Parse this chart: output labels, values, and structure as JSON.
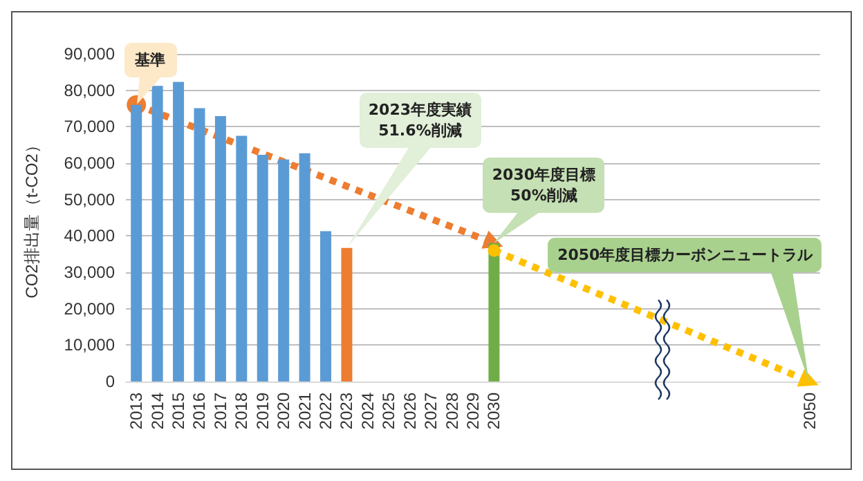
{
  "chart_data": {
    "type": "bar",
    "ylabel": "CO2排出量（t-CO2）",
    "categories": [
      "2013",
      "2014",
      "2015",
      "2016",
      "2017",
      "2018",
      "2019",
      "2020",
      "2021",
      "2022",
      "2023",
      "2024",
      "2025",
      "2026",
      "2027",
      "2028",
      "2029",
      "2030",
      null,
      null,
      null,
      null,
      null,
      null,
      null,
      null,
      null,
      null,
      null,
      null,
      null,
      null,
      "2050"
    ],
    "series": [
      {
        "values": [
          76000,
          81200,
          82300,
          75100,
          72900,
          67500,
          62300,
          61000,
          62700,
          41300,
          36700,
          null,
          null,
          null,
          null,
          null,
          null,
          38000,
          null,
          null,
          null,
          null,
          null,
          null,
          null,
          null,
          null,
          null,
          null,
          null,
          null,
          null,
          null
        ],
        "colors": [
          "#5b9bd5",
          "#5b9bd5",
          "#5b9bd5",
          "#5b9bd5",
          "#5b9bd5",
          "#5b9bd5",
          "#5b9bd5",
          "#5b9bd5",
          "#5b9bd5",
          "#5b9bd5",
          "#ed7d31",
          "#ed7d31",
          "#ed7d31",
          "#ed7d31",
          "#ed7d31",
          "#ed7d31",
          "#ed7d31",
          "#70ad47",
          "#70ad47",
          "#70ad47",
          "#70ad47",
          "#70ad47",
          "#70ad47",
          "#70ad47",
          "#70ad47",
          "#70ad47",
          "#70ad47",
          "#70ad47",
          "#70ad47",
          "#70ad47",
          "#70ad47",
          "#70ad47",
          "#70ad47"
        ]
      },
      {
        "type": "line",
        "color": "#ed7d31",
        "values": [
          76000,
          null,
          null,
          null,
          null,
          null,
          null,
          null,
          null,
          null,
          null,
          null,
          null,
          null,
          null,
          null,
          null,
          38000,
          null,
          null,
          null,
          null,
          null,
          null,
          null,
          null,
          null,
          null,
          null,
          null,
          null,
          null,
          null
        ]
      },
      {
        "type": "line",
        "color": "#ffc000",
        "values": [
          null,
          null,
          null,
          null,
          null,
          null,
          null,
          null,
          null,
          null,
          null,
          null,
          null,
          null,
          null,
          null,
          null,
          36000,
          null,
          null,
          null,
          null,
          null,
          null,
          null,
          null,
          null,
          null,
          null,
          null,
          null,
          null,
          0
        ]
      }
    ],
    "ylim": [
      0,
      90000
    ],
    "yticks": [
      {
        "value": 0,
        "label": "0"
      },
      {
        "value": 10000,
        "label": "10,000"
      },
      {
        "value": 20000,
        "label": "20,000"
      },
      {
        "value": 30000,
        "label": "30,000"
      },
      {
        "value": 40000,
        "label": "40,000"
      },
      {
        "value": 50000,
        "label": "50,000"
      },
      {
        "value": 60000,
        "label": "60,000"
      },
      {
        "value": 70000,
        "label": "70,000"
      },
      {
        "value": 80000,
        "label": "80,000"
      },
      {
        "value": 90000,
        "label": "90,000"
      }
    ],
    "grid": "y",
    "marker": "circle",
    "line_style": "dotted",
    "annotations": [
      {
        "text": "基準",
        "x": "2013",
        "y": 76000
      },
      "2023年度実績\n51.6%削減",
      {
        "text": "2030年度目標\n50%削減",
        "x": "2030",
        "y": 38000
      },
      "2050年度目標カーボンニュートラル"
    ]
  }
}
